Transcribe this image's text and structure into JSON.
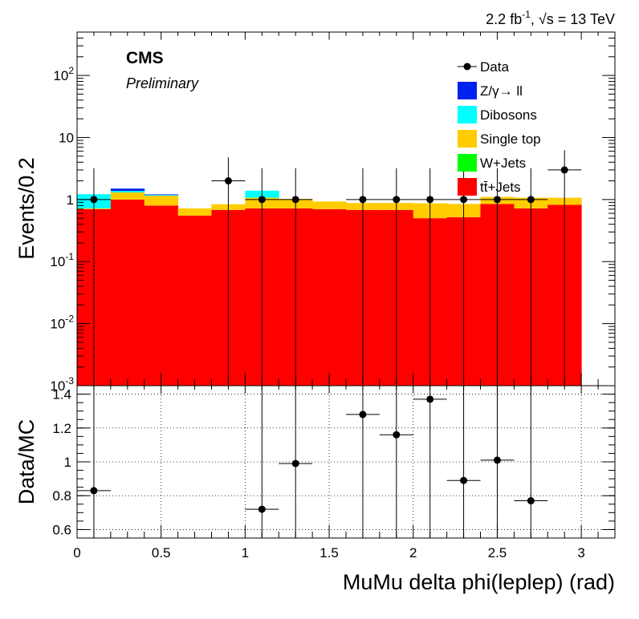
{
  "header": {
    "lumi": "2.2 fb",
    "lumi_exp": "-1",
    "energy": ", √s = 13 TeV"
  },
  "labels": {
    "cms": "CMS",
    "preliminary": "Preliminary"
  },
  "chart_data": [
    {
      "type": "bar",
      "stacked": true,
      "ylog": true,
      "ylabel": "Events/0.2",
      "ylim": [
        0.001,
        500
      ],
      "xlim": [
        0,
        3.2
      ],
      "bin_edges": [
        0,
        0.2,
        0.4,
        0.6,
        0.8,
        1.0,
        1.2,
        1.4,
        1.6,
        1.8,
        2.0,
        2.2,
        2.4,
        2.6,
        2.8,
        3.0
      ],
      "y_ticks": [
        {
          "value": 0.001,
          "base": "10",
          "exp": "-3"
        },
        {
          "value": 0.01,
          "base": "10",
          "exp": "-2"
        },
        {
          "value": 0.1,
          "base": "10",
          "exp": "-1"
        },
        {
          "value": 1,
          "base": "1",
          "exp": ""
        },
        {
          "value": 10,
          "base": "10",
          "exp": ""
        },
        {
          "value": 100,
          "base": "10",
          "exp": "2"
        }
      ],
      "legend_position": "top-right",
      "legend": [
        {
          "label": "Data",
          "kind": "marker"
        },
        {
          "label": "Z/γ→ ll",
          "kind": "fill",
          "color": "#0022ee"
        },
        {
          "label": "Dibosons",
          "kind": "fill",
          "color": "#00ffff"
        },
        {
          "label": "Single top",
          "kind": "fill",
          "color": "#ffcc00"
        },
        {
          "label": "W+Jets",
          "kind": "fill",
          "color": "#00ff00"
        },
        {
          "label": "tt̄+Jets",
          "kind": "fill",
          "color": "#ff0000"
        }
      ],
      "series": [
        {
          "name": "tt̄+Jets",
          "color": "#ff0000",
          "values": [
            0.7,
            1.0,
            0.8,
            0.55,
            0.68,
            0.72,
            0.72,
            0.7,
            0.68,
            0.68,
            0.5,
            0.52,
            0.85,
            0.72,
            0.82,
            0.7
          ]
        },
        {
          "name": "W+Jets",
          "color": "#00ff00",
          "values": [
            0,
            0,
            0,
            0,
            0,
            0,
            0,
            0,
            0,
            0,
            0,
            0,
            0,
            0,
            0,
            0
          ]
        },
        {
          "name": "Single top",
          "color": "#ffcc00",
          "values": [
            0.02,
            0.3,
            0.35,
            0.17,
            0.16,
            0.35,
            0.3,
            0.23,
            0.2,
            0.2,
            0.37,
            0.33,
            0.25,
            0.35,
            0.25,
            0.25
          ]
        },
        {
          "name": "Dibosons",
          "color": "#00ffff",
          "values": [
            0.5,
            0.08,
            0.03,
            0,
            0,
            0.32,
            0,
            0,
            0,
            0,
            0,
            0,
            0,
            0,
            0,
            0
          ]
        },
        {
          "name": "Z/γ→ ll",
          "color": "#0022ee",
          "values": [
            0,
            0.12,
            0.03,
            0,
            0,
            0,
            0,
            0,
            0,
            0,
            0,
            0,
            0,
            0,
            0,
            0
          ]
        }
      ],
      "data_points": [
        {
          "x": 0.1,
          "y": 1
        },
        {
          "x": 0.9,
          "y": 2
        },
        {
          "x": 1.1,
          "y": 1
        },
        {
          "x": 1.3,
          "y": 1
        },
        {
          "x": 1.7,
          "y": 1
        },
        {
          "x": 1.9,
          "y": 1
        },
        {
          "x": 2.1,
          "y": 1
        },
        {
          "x": 2.3,
          "y": 1
        },
        {
          "x": 2.5,
          "y": 1
        },
        {
          "x": 2.7,
          "y": 1
        },
        {
          "x": 2.9,
          "y": 3
        }
      ]
    },
    {
      "type": "scatter",
      "ylabel": "Data/MC",
      "xlabel": "MuMu delta phi(leplep) (rad)",
      "xlim": [
        0,
        3.2
      ],
      "ylim": [
        0.55,
        1.45
      ],
      "grid": true,
      "x_ticks": [
        "0",
        "0.5",
        "1",
        "1.5",
        "2",
        "2.5",
        "3"
      ],
      "y_ticks": [
        "0.6",
        "0.8",
        "1",
        "1.2",
        "1.4"
      ],
      "points": [
        {
          "x": 0.1,
          "y": 0.83
        },
        {
          "x": 1.1,
          "y": 0.72
        },
        {
          "x": 1.3,
          "y": 0.99
        },
        {
          "x": 1.7,
          "y": 1.28
        },
        {
          "x": 1.9,
          "y": 1.16
        },
        {
          "x": 2.1,
          "y": 1.37
        },
        {
          "x": 2.3,
          "y": 0.89
        },
        {
          "x": 2.5,
          "y": 1.01
        },
        {
          "x": 2.7,
          "y": 0.77
        }
      ]
    }
  ]
}
